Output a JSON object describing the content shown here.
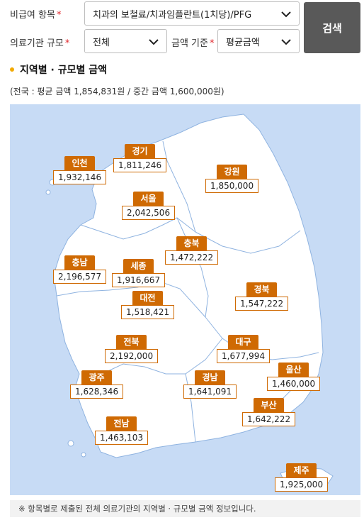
{
  "filters": {
    "item_label": "비급여 항목",
    "item_value": "치과의 보철료/치과임플란트(1치당)/PFG",
    "scale_label": "의료기관 규모",
    "scale_value": "전체",
    "basis_label": "금액 기준",
    "basis_value": "평균금액",
    "required_mark": "*",
    "search_label": "검색"
  },
  "section": {
    "title": "지역별 · 규모별 금액",
    "summary": "(전국 : 평균 금액 1,854,831원 / 중간 금액 1,600,000원)"
  },
  "regions": [
    {
      "name": "인천",
      "amount": "1,932,146"
    },
    {
      "name": "경기",
      "amount": "1,811,246"
    },
    {
      "name": "강원",
      "amount": "1,850,000"
    },
    {
      "name": "서울",
      "amount": "2,042,506"
    },
    {
      "name": "충북",
      "amount": "1,472,222"
    },
    {
      "name": "충남",
      "amount": "2,196,577"
    },
    {
      "name": "세종",
      "amount": "1,916,667"
    },
    {
      "name": "경북",
      "amount": "1,547,222"
    },
    {
      "name": "대전",
      "amount": "1,518,421"
    },
    {
      "name": "전북",
      "amount": "2,192,000"
    },
    {
      "name": "대구",
      "amount": "1,677,994"
    },
    {
      "name": "광주",
      "amount": "1,628,346"
    },
    {
      "name": "경남",
      "amount": "1,641,091"
    },
    {
      "name": "울산",
      "amount": "1,460,000"
    },
    {
      "name": "부산",
      "amount": "1,642,222"
    },
    {
      "name": "전남",
      "amount": "1,463,103"
    },
    {
      "name": "제주",
      "amount": "1,925,000"
    }
  ],
  "footnote": "※ 항목별로 제출된 전체 의료기관의 지역별 · 규모별 금액 정보입니다.",
  "colors": {
    "accent": "#cf6a03",
    "map_sea": "#c7dbf5",
    "map_land": "#ffffff",
    "button": "#595959",
    "dot": "#f2a900"
  }
}
